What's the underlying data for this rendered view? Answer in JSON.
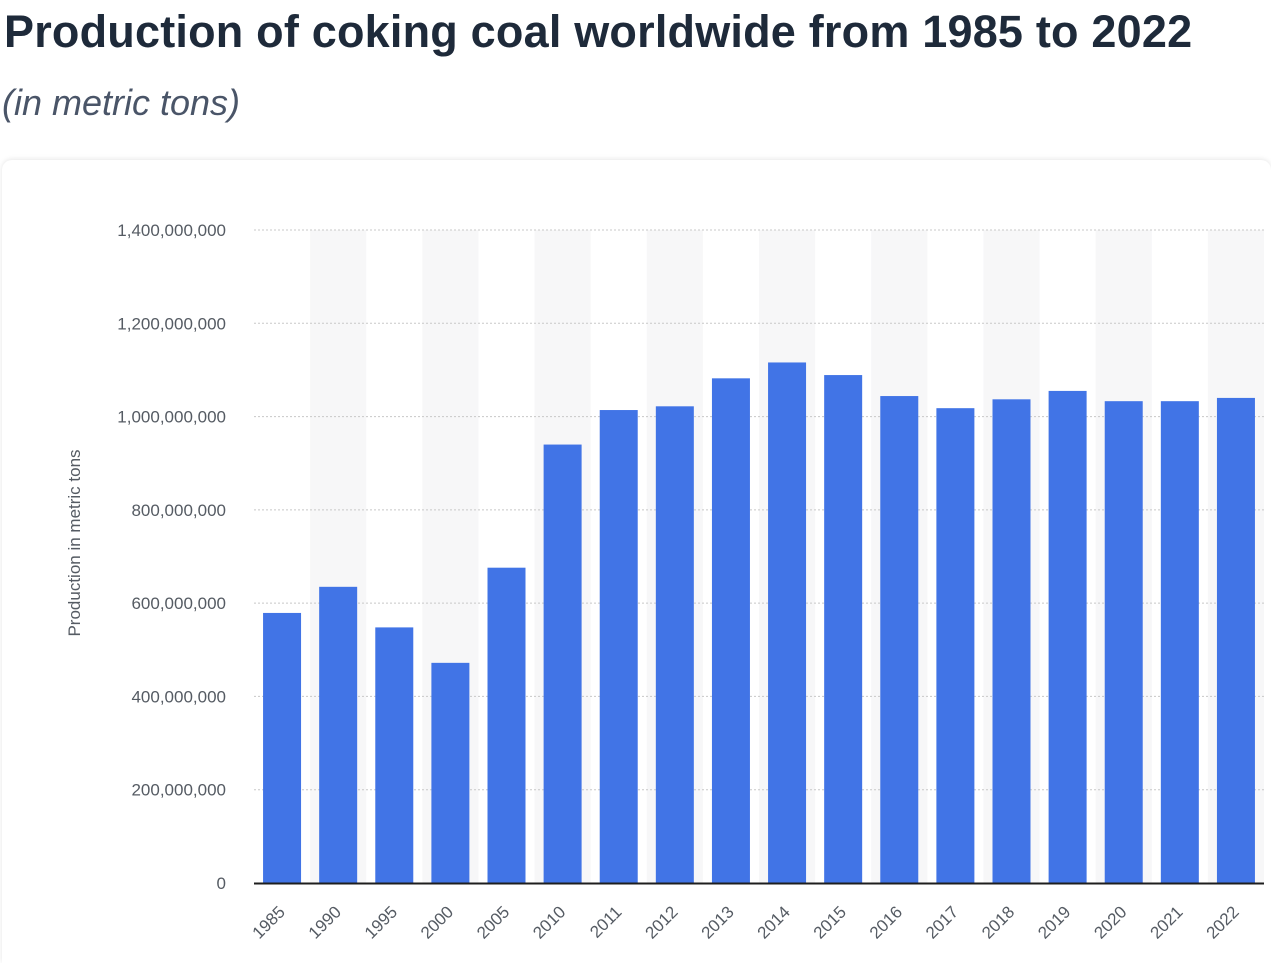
{
  "header": {
    "title": "Production of coking coal worldwide from 1985 to 2022",
    "subtitle": "(in metric tons)"
  },
  "colors": {
    "bar": "#4174e6",
    "band": "#f7f7f8",
    "grid": "#c8c8c8",
    "axis": "#1e1e1e"
  },
  "chart_data": {
    "type": "bar",
    "title": "Production of coking coal worldwide from 1985 to 2022",
    "subtitle": "(in metric tons)",
    "xlabel": "",
    "ylabel": "Production in metric tons",
    "ylim": [
      0,
      1400000000
    ],
    "yticks": [
      0,
      200000000,
      400000000,
      600000000,
      800000000,
      1000000000,
      1200000000,
      1400000000
    ],
    "ytick_labels": [
      "0",
      "200,000,000",
      "400,000,000",
      "600,000,000",
      "800,000,000",
      "1,000,000,000",
      "1,200,000,000",
      "1,400,000,000"
    ],
    "grid": true,
    "categories": [
      "1985",
      "1990",
      "1995",
      "2000",
      "2005",
      "2010",
      "2011",
      "2012",
      "2013",
      "2014",
      "2015",
      "2016",
      "2017",
      "2018",
      "2019",
      "2020",
      "2021",
      "2022"
    ],
    "values": [
      579000000,
      635000000,
      548000000,
      472000000,
      676000000,
      940000000,
      1014000000,
      1022000000,
      1082000000,
      1116000000,
      1089000000,
      1044000000,
      1018000000,
      1037000000,
      1055000000,
      1033000000,
      1033000000,
      1040000000
    ]
  }
}
